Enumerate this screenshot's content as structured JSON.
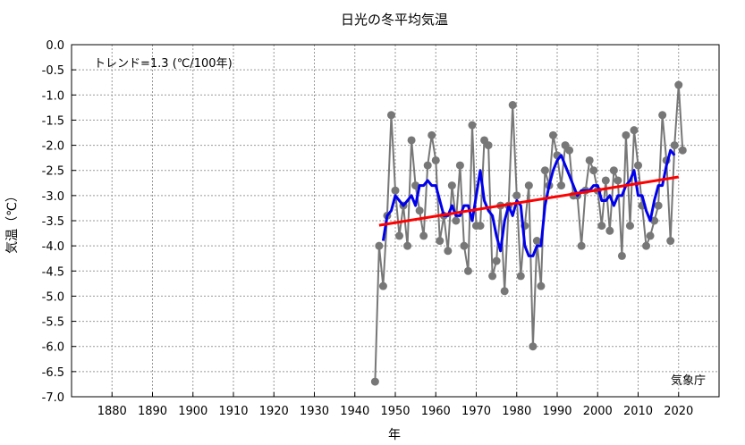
{
  "chart_data": {
    "type": "line",
    "title": "日光の冬平均気温",
    "xlabel": "年",
    "ylabel": "気温（℃）",
    "xlim": [
      1870,
      2030
    ],
    "ylim": [
      -7.0,
      0.0
    ],
    "x_ticks": [
      1880,
      1890,
      1900,
      1910,
      1920,
      1930,
      1940,
      1950,
      1960,
      1970,
      1980,
      1990,
      2000,
      2010,
      2020
    ],
    "y_ticks": [
      0.0,
      -0.5,
      -1.0,
      -1.5,
      -2.0,
      -2.5,
      -3.0,
      -3.5,
      -4.0,
      -4.5,
      -5.0,
      -5.5,
      -6.0,
      -6.5,
      -7.0
    ],
    "y_tick_labels": [
      "0.0",
      "-0.5",
      "-1.0",
      "-1.5",
      "-2.0",
      "-2.5",
      "-3.0",
      "-3.5",
      "-4.0",
      "-4.5",
      "-5.0",
      "-5.5",
      "-6.0",
      "-6.5",
      "-7.0"
    ],
    "grid": true,
    "annotations": {
      "trend": "トレンド=1.3 (℃/100年)",
      "source": "気象庁"
    },
    "series": [
      {
        "name": "",
        "color": "#777777",
        "x": [
          1945,
          1946,
          1947,
          1948,
          1949,
          1950,
          1951,
          1952,
          1953,
          1954,
          1955,
          1956,
          1957,
          1958,
          1959,
          1960,
          1961,
          1962,
          1963,
          1964,
          1965,
          1966,
          1967,
          1968,
          1969,
          1970,
          1971,
          1972,
          1973,
          1974,
          1975,
          1976,
          1977,
          1978,
          1979,
          1980,
          1981,
          1982,
          1983,
          1984,
          1985,
          1986,
          1987,
          1988,
          1989,
          1990,
          1991,
          1992,
          1993,
          1994,
          1995,
          1996,
          1997,
          1998,
          1999,
          2000,
          2001,
          2002,
          2003,
          2004,
          2005,
          2006,
          2007,
          2008,
          2009,
          2010,
          2011,
          2012,
          2013,
          2014,
          2015,
          2016,
          2017,
          2018,
          2019,
          2020,
          2021
        ],
        "y": [
          -6.7,
          -4.0,
          -4.8,
          -3.4,
          -1.4,
          -2.9,
          -3.8,
          -3.2,
          -4.0,
          -1.9,
          -2.8,
          -3.3,
          -3.8,
          -2.4,
          -1.8,
          -2.3,
          -3.9,
          -3.4,
          -4.1,
          -2.8,
          -3.5,
          -2.4,
          -4.0,
          -4.5,
          -1.6,
          -3.6,
          -3.6,
          -1.9,
          -2.0,
          -4.6,
          -4.3,
          -3.2,
          -4.9,
          -3.2,
          -1.2,
          -3.0,
          -4.6,
          -3.6,
          -2.8,
          -6.0,
          -3.9,
          -4.8,
          -2.5,
          -2.8,
          -1.8,
          -2.2,
          -2.8,
          -2.0,
          -2.1,
          -3.0,
          -3.0,
          -4.0,
          -2.9,
          -2.3,
          -2.5,
          -2.9,
          -3.6,
          -2.7,
          -3.7,
          -2.5,
          -2.7,
          -4.2,
          -1.8,
          -3.6,
          -1.7,
          -2.4,
          -3.2,
          -4.0,
          -3.8,
          -3.5,
          -3.2,
          -1.4,
          -2.3,
          -3.9,
          -2.0,
          -0.8,
          -2.1
        ]
      },
      {
        "name": "",
        "color": "#0000ee",
        "x": [
          1947,
          1948,
          1949,
          1950,
          1951,
          1952,
          1953,
          1954,
          1955,
          1956,
          1957,
          1958,
          1959,
          1960,
          1961,
          1962,
          1963,
          1964,
          1965,
          1966,
          1967,
          1968,
          1969,
          1970,
          1971,
          1972,
          1973,
          1974,
          1975,
          1976,
          1977,
          1978,
          1979,
          1980,
          1981,
          1982,
          1983,
          1984,
          1985,
          1986,
          1987,
          1988,
          1989,
          1990,
          1991,
          1992,
          1993,
          1994,
          1995,
          1996,
          1997,
          1998,
          1999,
          2000,
          2001,
          2002,
          2003,
          2004,
          2005,
          2006,
          2007,
          2008,
          2009,
          2010,
          2011,
          2012,
          2013,
          2014,
          2015,
          2016,
          2017,
          2018,
          2019
        ],
        "y": [
          -3.9,
          -3.4,
          -3.3,
          -3.0,
          -3.1,
          -3.2,
          -3.1,
          -3.0,
          -3.2,
          -2.8,
          -2.8,
          -2.7,
          -2.8,
          -2.8,
          -3.1,
          -3.4,
          -3.4,
          -3.2,
          -3.4,
          -3.4,
          -3.2,
          -3.2,
          -3.5,
          -3.0,
          -2.5,
          -3.1,
          -3.3,
          -3.4,
          -3.8,
          -4.1,
          -3.5,
          -3.2,
          -3.4,
          -3.1,
          -3.2,
          -4.0,
          -4.2,
          -4.2,
          -4.0,
          -4.0,
          -3.2,
          -2.8,
          -2.5,
          -2.3,
          -2.2,
          -2.4,
          -2.6,
          -2.8,
          -3.0,
          -2.9,
          -2.9,
          -2.9,
          -2.8,
          -2.8,
          -3.1,
          -3.1,
          -3.0,
          -3.2,
          -3.0,
          -3.0,
          -2.8,
          -2.7,
          -2.5,
          -3.0,
          -3.0,
          -3.3,
          -3.5,
          -3.1,
          -2.8,
          -2.8,
          -2.4,
          -2.1,
          -2.2
        ]
      },
      {
        "name": "",
        "color": "#ff0000",
        "x": [
          1946,
          2020
        ],
        "y": [
          -3.59,
          -2.63
        ]
      }
    ]
  }
}
